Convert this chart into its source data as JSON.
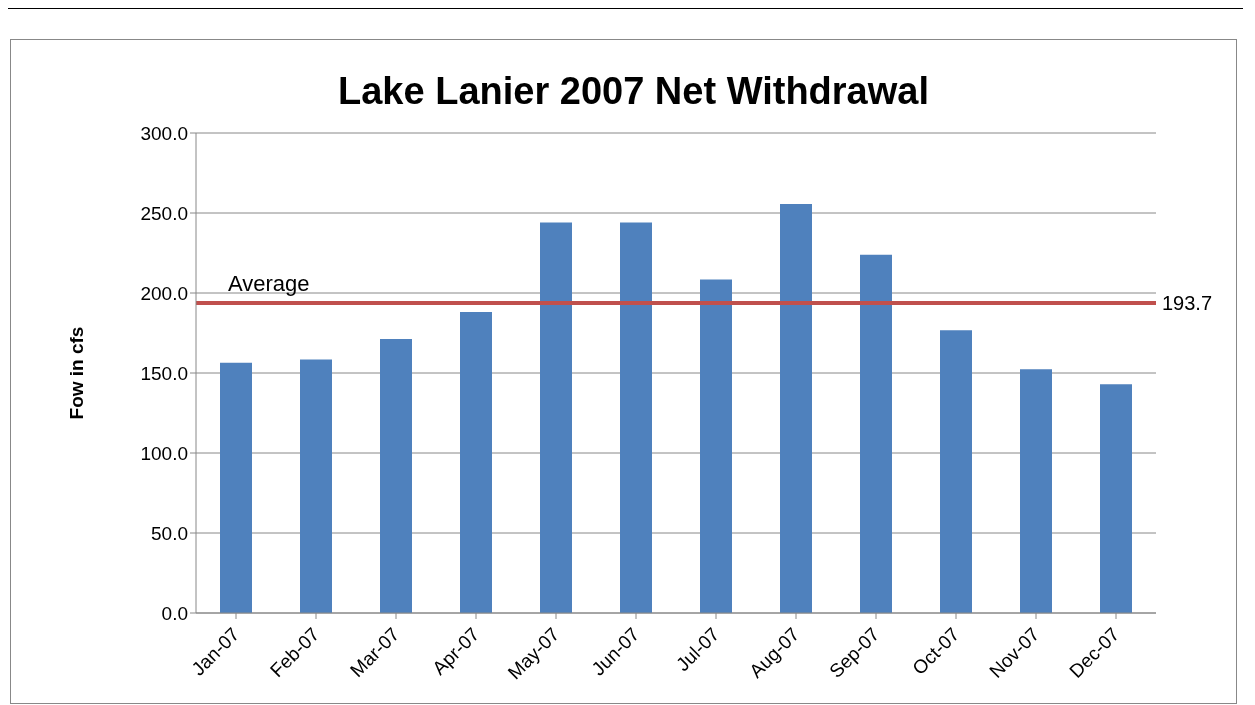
{
  "chart_data": {
    "type": "bar",
    "title": "Lake Lanier 2007 Net Withdrawal",
    "ylabel": "Fow in cfs",
    "categories": [
      "Jan-07",
      "Feb-07",
      "Mar-07",
      "Apr-07",
      "May-07",
      "Jun-07",
      "Jul-07",
      "Aug-07",
      "Sep-07",
      "Oct-07",
      "Nov-07",
      "Dec-07"
    ],
    "values": [
      156.4,
      158.4,
      171.3,
      188.1,
      244.1,
      244.1,
      208.4,
      255.6,
      223.9,
      176.7,
      152.4,
      143.0
    ],
    "color": "#4f81bd",
    "ylim": [
      0,
      300
    ],
    "yticks": [
      {
        "value": 0,
        "label": "0.0"
      },
      {
        "value": 50,
        "label": "50.0"
      },
      {
        "value": 100,
        "label": "100.0"
      },
      {
        "value": 150,
        "label": "150.0"
      },
      {
        "value": 200,
        "label": "200.0"
      },
      {
        "value": 250,
        "label": "250.0"
      },
      {
        "value": 300,
        "label": "300.0"
      }
    ],
    "grid": "y",
    "legend": false,
    "ref_lines": [
      {
        "axis": "y",
        "value": 193.7,
        "label": "Average",
        "color": "#c0504d"
      }
    ],
    "annotations": [
      "193.7"
    ]
  }
}
